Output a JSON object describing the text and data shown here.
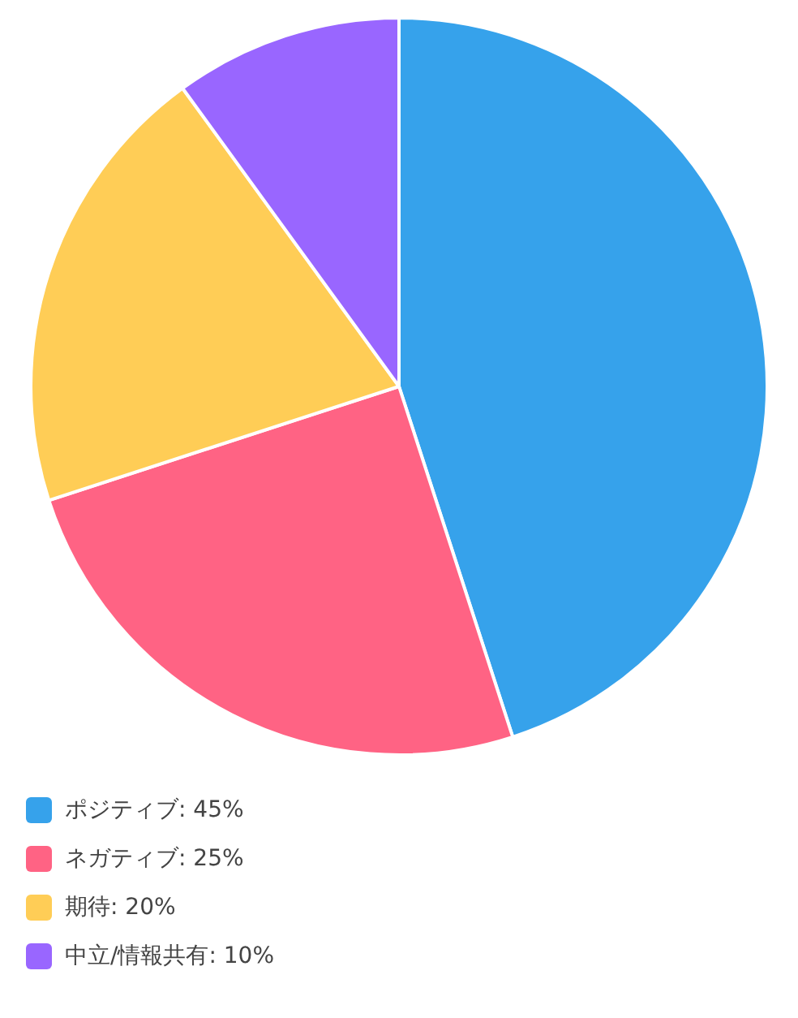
{
  "chart_data": {
    "type": "pie",
    "categories": [
      "ポジティブ: 45%",
      "ネガティブ: 25%",
      "期待: 20%",
      "中立/情報共有: 10%"
    ],
    "values": [
      45,
      25,
      20,
      10
    ],
    "colors": [
      "#36a2eb",
      "#ff6384",
      "#ffcd56",
      "#9966ff"
    ],
    "legend": "bottom"
  }
}
